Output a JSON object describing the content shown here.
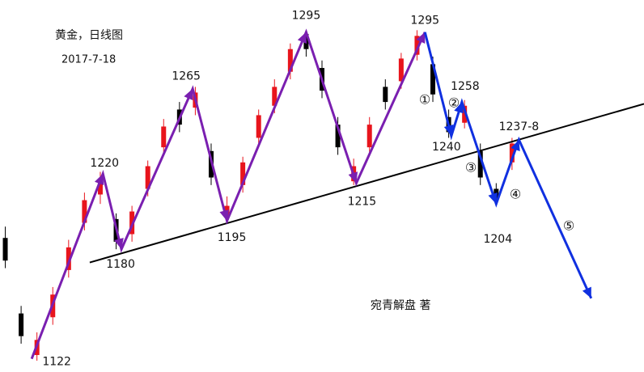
{
  "chart_data": {
    "type": "candlestick",
    "title": "黄金，日线图",
    "subtitle": "2017-7-18",
    "author": "宛青解盘 著",
    "xlim": [
      -1,
      121
    ],
    "ylim": [
      1115,
      1312
    ],
    "candles": {
      "x": [
        0,
        3,
        6,
        9,
        12,
        15,
        18,
        21,
        24,
        27,
        30,
        33,
        36,
        39,
        42,
        45,
        48,
        51,
        54,
        57,
        60,
        63,
        66,
        69,
        72,
        75,
        78,
        81,
        84,
        87,
        90,
        93,
        96
      ],
      "open": [
        1186,
        1146,
        1124,
        1144,
        1169,
        1194,
        1209,
        1196,
        1188,
        1212,
        1234,
        1254,
        1255,
        1232,
        1197,
        1214,
        1239,
        1256,
        1274,
        1294,
        1276,
        1246,
        1216,
        1234,
        1266,
        1269,
        1283,
        1278,
        1250,
        1247,
        1232,
        1212,
        1226
      ],
      "high": [
        1192,
        1150,
        1136,
        1160,
        1185,
        1210,
        1221,
        1199,
        1203,
        1227,
        1249,
        1258,
        1266,
        1236,
        1208,
        1229,
        1254,
        1270,
        1289,
        1296,
        1280,
        1250,
        1228,
        1250,
        1270,
        1284,
        1296,
        1282,
        1254,
        1259,
        1236,
        1215,
        1239
      ],
      "low": [
        1170,
        1130,
        1121,
        1140,
        1165,
        1190,
        1204,
        1180,
        1184,
        1208,
        1230,
        1242,
        1251,
        1214,
        1195,
        1210,
        1235,
        1252,
        1270,
        1282,
        1260,
        1230,
        1214,
        1230,
        1254,
        1265,
        1280,
        1258,
        1239,
        1244,
        1214,
        1204,
        1222
      ],
      "close": [
        1174,
        1134,
        1132,
        1156,
        1181,
        1206,
        1217,
        1184,
        1200,
        1224,
        1245,
        1246,
        1263,
        1218,
        1203,
        1226,
        1251,
        1266,
        1286,
        1286,
        1264,
        1234,
        1224,
        1246,
        1258,
        1281,
        1293,
        1262,
        1242,
        1256,
        1218,
        1206,
        1236
      ],
      "up_color": "#e8141c",
      "down_color": "#000000"
    },
    "trendline": {
      "x": [
        16,
        121
      ],
      "values": [
        1173,
        1257
      ],
      "color": "#000000"
    },
    "series": [
      {
        "color": "#7a1fb0",
        "x": [
          5,
          18.5,
          22,
          35.5,
          42,
          57,
          66.5,
          79.5
        ],
        "values": [
          1122,
          1220,
          1180,
          1265,
          1195,
          1295,
          1215,
          1295
        ]
      },
      {
        "color": "#1030e0",
        "x": [
          79.5,
          84.5,
          86.5,
          93,
          97.3,
          111
        ],
        "values": [
          1295,
          1240,
          1258,
          1204,
          1238,
          1154
        ],
        "value_labels": [
          null,
          "1240",
          "1258",
          "1204",
          "1237-8",
          null
        ]
      }
    ],
    "annotations": [
      "①",
      "②",
      "③",
      "④",
      "⑤"
    ]
  }
}
